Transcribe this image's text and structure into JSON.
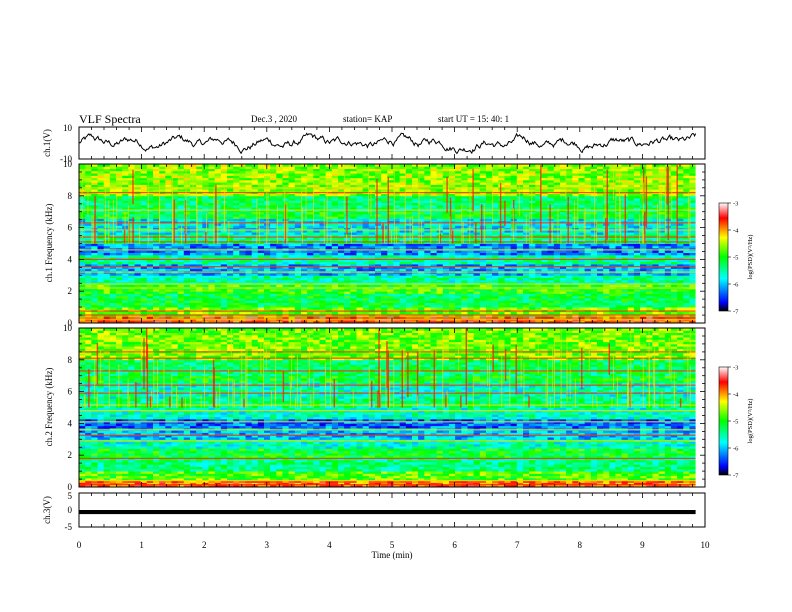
{
  "header": {
    "title": "VLF Spectra",
    "date": "Dec.3 , 2020",
    "station": "station= KAP",
    "start": "start UT = 15: 40: 1"
  },
  "colorbar": {
    "label": "log(PSD)(V²/Hz)",
    "ticks": [
      -3,
      -4,
      -5,
      -6,
      -7
    ],
    "colormap": [
      "#000000",
      "#0000ff",
      "#00ffff",
      "#00ff00",
      "#ffff00",
      "#ff0000",
      "#ffffff"
    ]
  },
  "chart_data": [
    {
      "type": "line",
      "panel": "ch1-waveform",
      "ylabel": "ch.1(V)",
      "ylim": [
        -10,
        10
      ],
      "yticks": [
        "10",
        "-10"
      ],
      "xlim": [
        0,
        10
      ],
      "color": "#000000",
      "x_end": 9.85,
      "y_range": [
        -9,
        8
      ]
    },
    {
      "type": "heatmap",
      "panel": "ch1-spectrogram",
      "ylabel": "ch.1 Frequency (kHz)",
      "ylim": [
        0,
        10
      ],
      "yticks": [
        "0",
        "2",
        "4",
        "6",
        "8",
        "10"
      ],
      "xlim": [
        0,
        10
      ],
      "x_end": 9.85,
      "value_range": [
        -7,
        -3
      ],
      "bands": [
        {
          "f0": 0.0,
          "f1": 0.35,
          "level": -3.7
        },
        {
          "f0": 0.35,
          "f1": 0.9,
          "level": -4.7
        },
        {
          "f0": 0.9,
          "f1": 1.8,
          "level": -5.2
        },
        {
          "f0": 1.8,
          "f1": 2.4,
          "level": -4.9
        },
        {
          "f0": 2.4,
          "f1": 3.0,
          "level": -5.5
        },
        {
          "f0": 3.0,
          "f1": 3.6,
          "level": -6.1
        },
        {
          "f0": 3.6,
          "f1": 4.2,
          "level": -5.5
        },
        {
          "f0": 4.2,
          "f1": 5.0,
          "level": -6.2
        },
        {
          "f0": 5.0,
          "f1": 5.5,
          "level": -5.4
        },
        {
          "f0": 5.5,
          "f1": 6.5,
          "level": -5.8
        },
        {
          "f0": 6.5,
          "f1": 7.0,
          "level": -5.1
        },
        {
          "f0": 7.0,
          "f1": 8.0,
          "level": -5.3
        },
        {
          "f0": 8.0,
          "f1": 10.0,
          "level": -4.6
        }
      ],
      "lines_khz": [
        0.2,
        0.5,
        0.75,
        2.2,
        2.45,
        3.2,
        3.55,
        4.0,
        4.6,
        5.1,
        5.4,
        5.85,
        6.3,
        7.1,
        8.2,
        8.5
      ]
    },
    {
      "type": "heatmap",
      "panel": "ch2-spectrogram",
      "ylabel": "ch.2 Frequency (kHz)",
      "ylim": [
        0,
        10
      ],
      "yticks": [
        "0",
        "2",
        "4",
        "6",
        "8",
        "10"
      ],
      "xlim": [
        0,
        10
      ],
      "x_end": 9.85,
      "value_range": [
        -7,
        -3
      ],
      "bands": [
        {
          "f0": 0.0,
          "f1": 0.35,
          "level": -3.8
        },
        {
          "f0": 0.35,
          "f1": 0.9,
          "level": -4.8
        },
        {
          "f0": 0.9,
          "f1": 1.8,
          "level": -5.4
        },
        {
          "f0": 1.8,
          "f1": 2.4,
          "level": -5.1
        },
        {
          "f0": 2.4,
          "f1": 3.0,
          "level": -5.6
        },
        {
          "f0": 3.0,
          "f1": 3.6,
          "level": -6.0
        },
        {
          "f0": 3.6,
          "f1": 4.2,
          "level": -6.3
        },
        {
          "f0": 4.2,
          "f1": 5.0,
          "level": -5.6
        },
        {
          "f0": 5.0,
          "f1": 5.5,
          "level": -5.4
        },
        {
          "f0": 5.5,
          "f1": 6.5,
          "level": -5.6
        },
        {
          "f0": 6.5,
          "f1": 7.0,
          "level": -5.1
        },
        {
          "f0": 7.0,
          "f1": 8.0,
          "level": -5.3
        },
        {
          "f0": 8.0,
          "f1": 10.0,
          "level": -4.7
        }
      ],
      "lines_khz": [
        0.15,
        0.4,
        1.8,
        2.9,
        3.25,
        3.6,
        4.1,
        4.8,
        5.15,
        5.9,
        6.4,
        7.3,
        8.1,
        8.5
      ]
    },
    {
      "type": "line",
      "panel": "ch3-waveform",
      "ylabel": "ch.3(V)",
      "ylim": [
        -5,
        5
      ],
      "yticks": [
        "5",
        "0",
        "-5"
      ],
      "xlim": [
        0,
        10
      ],
      "x_end": 9.85,
      "color": "#000000",
      "level": [
        -1.2,
        0.0
      ],
      "xlabel": "Time (min)",
      "xticks": [
        "0",
        "1",
        "2",
        "3",
        "4",
        "5",
        "6",
        "7",
        "8",
        "9",
        "10"
      ]
    }
  ]
}
